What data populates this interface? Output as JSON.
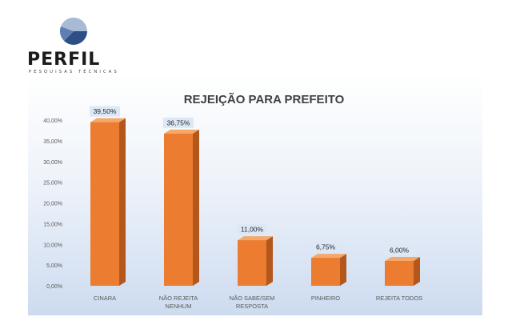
{
  "logo": {
    "name": "PERFIL",
    "tagline": "PESQUISAS TÉCNICAS"
  },
  "chart_data": {
    "type": "bar",
    "title": "REJEIÇÃO PARA PREFEITO",
    "xlabel": "",
    "ylabel": "",
    "categories": [
      [
        "CINARA"
      ],
      [
        "NÃO REJEITA",
        "NENHUM"
      ],
      [
        "NÃO SABE/SEM",
        "RESPOSTA"
      ],
      [
        "PINHEIRO"
      ],
      [
        "REJEITA TODOS"
      ]
    ],
    "values": [
      39.5,
      36.75,
      11.0,
      6.75,
      6.0
    ],
    "data_labels": [
      "39,50%",
      "36,75%",
      "11,00%",
      "6,75%",
      "6,00%"
    ],
    "ylim": [
      0,
      40
    ],
    "yticks": [
      0,
      5,
      10,
      15,
      20,
      25,
      30,
      35,
      40
    ],
    "ytick_labels": [
      "0,00%",
      "5,00%",
      "10,00%",
      "15,00%",
      "20,00%",
      "25,00%",
      "30,00%",
      "35,00%",
      "40,00%"
    ],
    "grid": false,
    "legend": "none",
    "colors": {
      "bar_front": "#ec7c2f",
      "bar_top": "#f5a86a",
      "bar_side": "#b3571c",
      "label_box": "#dde8f6",
      "title": "#404040",
      "axis_text": "#595959",
      "logo_dark": "#2e4f86",
      "logo_mid": "#5f7fb4",
      "logo_light": "#a9bad6"
    }
  }
}
